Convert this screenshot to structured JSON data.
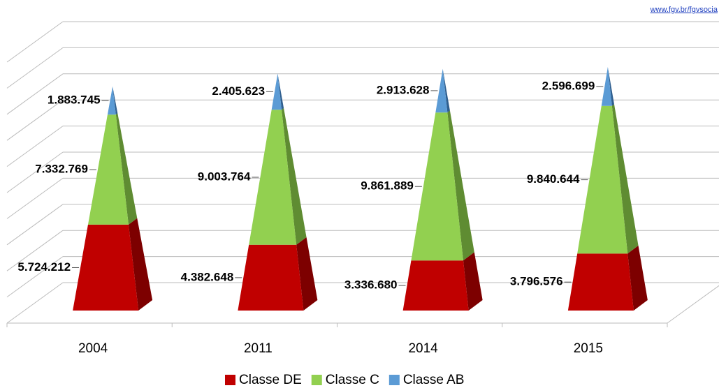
{
  "source": "www.fgv.br/fgvsocia",
  "chart_data": {
    "type": "pyramid",
    "categories": [
      "2004",
      "2011",
      "2014",
      "2015"
    ],
    "series": [
      {
        "name": "Classe DE",
        "color": "#c00000",
        "side": "#7d0000",
        "values": [
          5724212,
          4382648,
          3336680,
          3796576
        ],
        "value_labels": [
          "5.724.212",
          "4.382.648",
          "3.336.680",
          "3.796.576"
        ]
      },
      {
        "name": "Classe C",
        "color": "#92d050",
        "side": "#5f8c32",
        "values": [
          7332769,
          9003764,
          9861889,
          9840644
        ],
        "value_labels": [
          "7.332.769",
          "9.003.764",
          "9.861.889",
          "9.840.644"
        ]
      },
      {
        "name": "Classe AB",
        "color": "#5b9bd5",
        "side": "#2f5f8f",
        "values": [
          1883745,
          2405623,
          2913628,
          2596699
        ],
        "value_labels": [
          "1.883.745",
          "2.405.623",
          "2.913.628",
          "2.596.699"
        ]
      }
    ],
    "ylim": [
      0,
      20000000
    ],
    "yticks": [
      0,
      2000000,
      4000000,
      6000000,
      8000000,
      10000000,
      12000000,
      14000000,
      16000000,
      18000000,
      20000000
    ],
    "grid": true
  }
}
